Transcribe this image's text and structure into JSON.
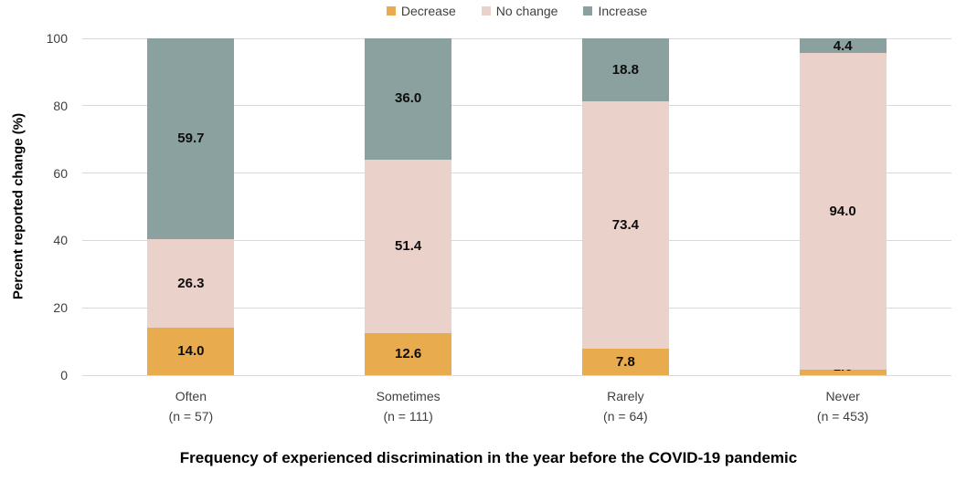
{
  "chart_data": {
    "type": "bar",
    "stacked": true,
    "orientation": "vertical",
    "xlabel": "Frequency of experienced discrimination in the year before the COVID-19 pandemic",
    "ylabel": "Percent reported change (%)",
    "ylim": [
      0,
      100
    ],
    "yticks": [
      0,
      20,
      40,
      60,
      80,
      100
    ],
    "grid": true,
    "gridline_color": "#D9D9D9",
    "legend_position": "top",
    "categories": [
      "Often",
      "Sometimes",
      "Rarely",
      "Never"
    ],
    "category_sublabels": [
      "(n = 57)",
      "(n = 111)",
      "(n = 64)",
      "(n = 453)"
    ],
    "series": [
      {
        "name": "Decrease",
        "color": "#E8AB4E",
        "values": [
          14.0,
          12.6,
          7.8,
          1.6
        ]
      },
      {
        "name": "No change",
        "color": "#EAD1C9",
        "values": [
          26.3,
          51.4,
          73.4,
          94.0
        ]
      },
      {
        "name": "Increase",
        "color": "#8BA19F",
        "values": [
          59.7,
          36.0,
          18.8,
          4.4
        ]
      }
    ],
    "value_label_decimals": 1
  }
}
